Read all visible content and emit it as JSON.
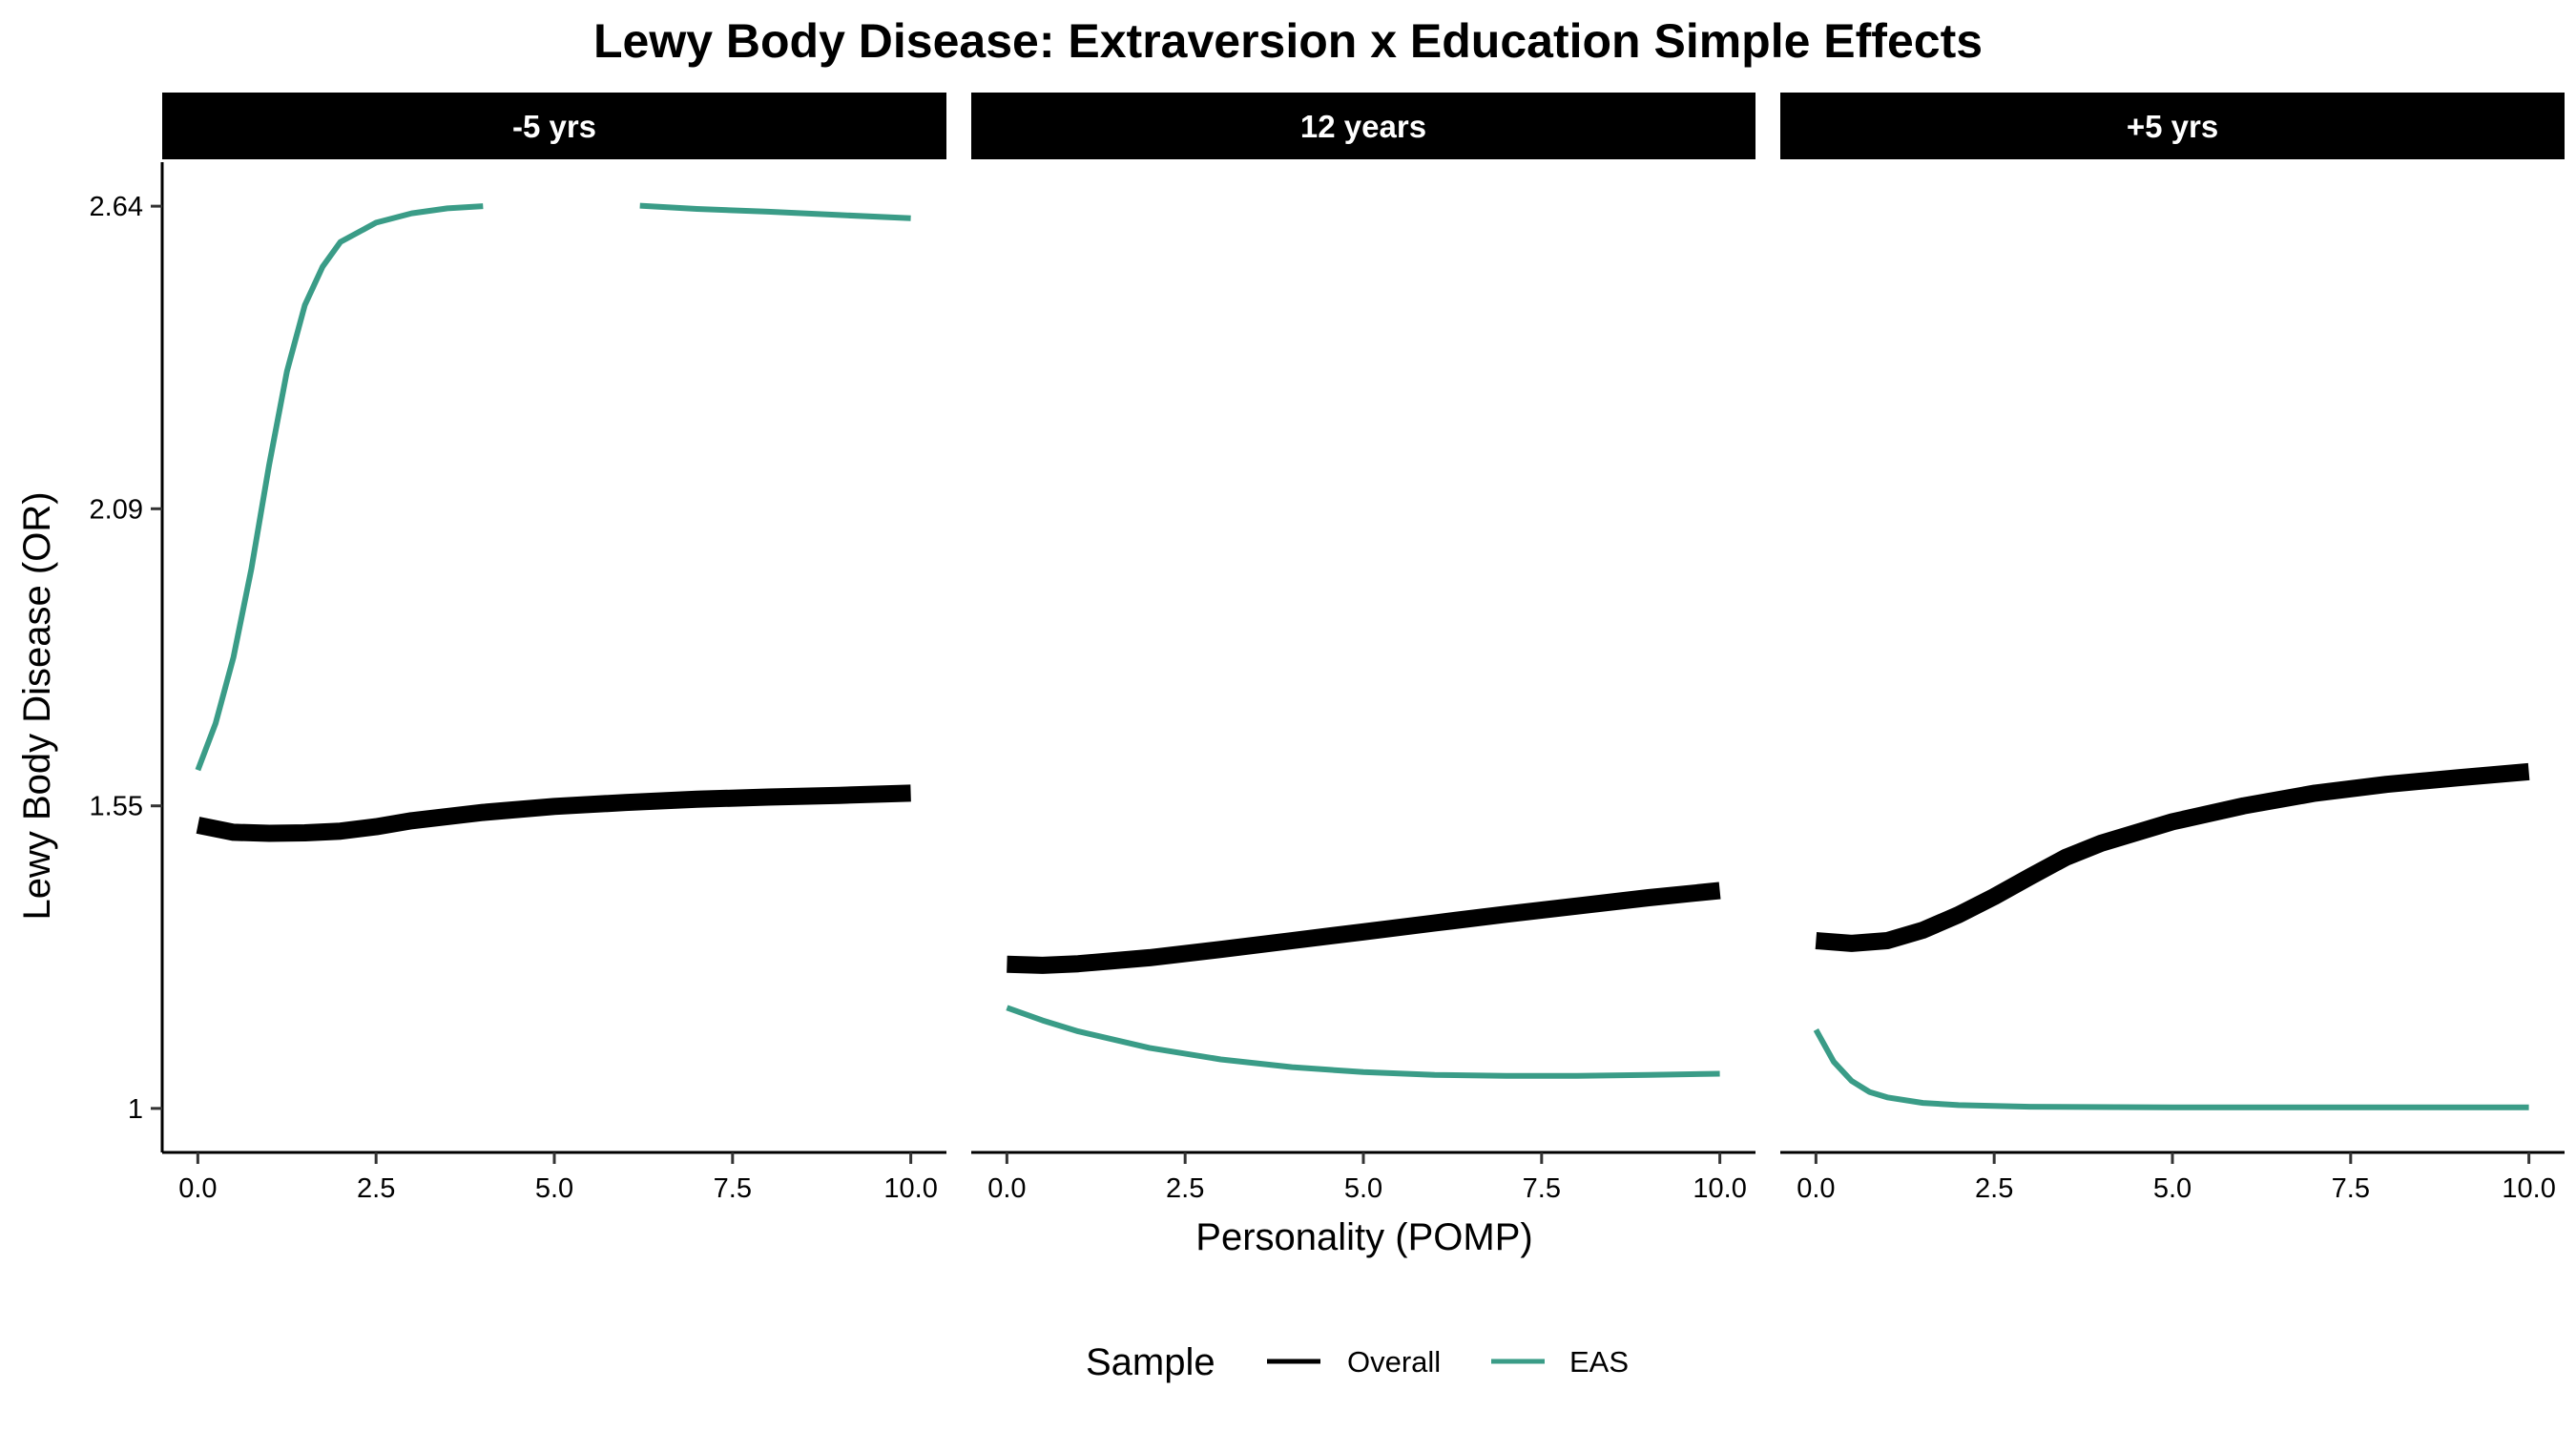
{
  "chart_data": {
    "type": "line",
    "title": "Lewy Body Disease: Extraversion x Education Simple Effects",
    "xlabel": "Personality (POMP)",
    "ylabel": "Lewy Body Disease (OR)",
    "x_ticks": [
      0,
      2.5,
      5,
      7.5,
      10
    ],
    "x_tick_labels": [
      "0.0",
      "2.5",
      "5.0",
      "7.5",
      "10.0"
    ],
    "y_ticks": [
      1,
      1.55,
      2.09,
      2.64
    ],
    "y_tick_labels": [
      "1",
      "1.55",
      "2.09",
      "2.64"
    ],
    "xlim": [
      -0.5,
      10.5
    ],
    "ylim": [
      0.92,
      2.72
    ],
    "grid": false,
    "legend": {
      "title": "Sample",
      "position": "bottom",
      "entries": [
        {
          "name": "Overall",
          "color": "#000000"
        },
        {
          "name": "EAS",
          "color": "#3a9c87"
        }
      ]
    },
    "facets": [
      {
        "label": "-5 yrs",
        "series": [
          {
            "name": "Overall",
            "points": [
              [
                0,
                1.515
              ],
              [
                0.5,
                1.502
              ],
              [
                1,
                1.5
              ],
              [
                1.5,
                1.501
              ],
              [
                2,
                1.504
              ],
              [
                2.5,
                1.512
              ],
              [
                3,
                1.523
              ],
              [
                4,
                1.538
              ],
              [
                5,
                1.549
              ],
              [
                6,
                1.556
              ],
              [
                7,
                1.562
              ],
              [
                8,
                1.566
              ],
              [
                9,
                1.569
              ],
              [
                10,
                1.573
              ]
            ]
          },
          {
            "name": "EAS",
            "segments": [
              [
                [
                  0,
                  1.615
                ],
                [
                  0.25,
                  1.7
                ],
                [
                  0.5,
                  1.82
                ],
                [
                  0.75,
                  1.98
                ],
                [
                  1,
                  2.17
                ],
                [
                  1.25,
                  2.34
                ],
                [
                  1.5,
                  2.46
                ],
                [
                  1.75,
                  2.53
                ],
                [
                  2,
                  2.575
                ],
                [
                  2.5,
                  2.61
                ],
                [
                  3,
                  2.627
                ],
                [
                  3.5,
                  2.636
                ],
                [
                  4,
                  2.64
                ]
              ],
              [
                [
                  6.2,
                  2.641
                ],
                [
                  7,
                  2.635
                ],
                [
                  8,
                  2.63
                ],
                [
                  9,
                  2.624
                ],
                [
                  10,
                  2.618
                ]
              ]
            ]
          }
        ]
      },
      {
        "label": "12 years",
        "series": [
          {
            "name": "Overall",
            "points": [
              [
                0,
                1.262
              ],
              [
                0.5,
                1.26
              ],
              [
                1,
                1.263
              ],
              [
                2,
                1.274
              ],
              [
                3,
                1.289
              ],
              [
                4,
                1.305
              ],
              [
                5,
                1.321
              ],
              [
                6,
                1.337
              ],
              [
                7,
                1.353
              ],
              [
                8,
                1.368
              ],
              [
                9,
                1.383
              ],
              [
                10,
                1.396
              ]
            ]
          },
          {
            "name": "EAS",
            "points": [
              [
                0,
                1.183
              ],
              [
                0.5,
                1.16
              ],
              [
                1,
                1.14
              ],
              [
                2,
                1.11
              ],
              [
                3,
                1.089
              ],
              [
                4,
                1.075
              ],
              [
                5,
                1.066
              ],
              [
                6,
                1.061
              ],
              [
                7,
                1.059
              ],
              [
                8,
                1.059
              ],
              [
                9,
                1.061
              ],
              [
                10,
                1.063
              ]
            ]
          }
        ]
      },
      {
        "label": "+5 yrs",
        "series": [
          {
            "name": "Overall",
            "points": [
              [
                0,
                1.305
              ],
              [
                0.5,
                1.3
              ],
              [
                1,
                1.305
              ],
              [
                1.5,
                1.324
              ],
              [
                2,
                1.352
              ],
              [
                2.5,
                1.385
              ],
              [
                3,
                1.421
              ],
              [
                3.5,
                1.456
              ],
              [
                4,
                1.482
              ],
              [
                5,
                1.521
              ],
              [
                6,
                1.55
              ],
              [
                7,
                1.573
              ],
              [
                8,
                1.589
              ],
              [
                9,
                1.601
              ],
              [
                10,
                1.612
              ]
            ]
          },
          {
            "name": "EAS",
            "points": [
              [
                0,
                1.143
              ],
              [
                0.25,
                1.085
              ],
              [
                0.5,
                1.05
              ],
              [
                0.75,
                1.03
              ],
              [
                1,
                1.02
              ],
              [
                1.5,
                1.01
              ],
              [
                2,
                1.006
              ],
              [
                3,
                1.003
              ],
              [
                5,
                1.002
              ],
              [
                10,
                1.002
              ]
            ]
          }
        ]
      }
    ]
  }
}
